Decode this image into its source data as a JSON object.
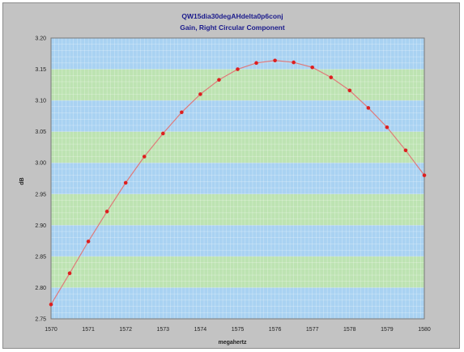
{
  "chart_data": {
    "type": "line",
    "title": "QW15dia30degAHdelta0p6conj",
    "subtitle": "Gain, Right Circular Component",
    "xlabel": "megahertz",
    "ylabel": "dB",
    "xlim": [
      1570,
      1580
    ],
    "ylim": [
      2.75,
      3.2
    ],
    "x_ticks": [
      "1570",
      "1571",
      "1572",
      "1573",
      "1574",
      "1575",
      "1576",
      "1577",
      "1578",
      "1579",
      "1580"
    ],
    "y_ticks": [
      "2.75",
      "2.80",
      "2.85",
      "2.90",
      "2.95",
      "3.00",
      "3.05",
      "3.10",
      "3.15",
      "3.20"
    ],
    "band_colors": [
      "#a9d2f2",
      "#bde3b2"
    ],
    "grid": true,
    "line_color": "#e07a7a",
    "marker_color": "#dd1f1f",
    "series": [
      {
        "x": [
          1570,
          1570.5,
          1571,
          1571.5,
          1572,
          1572.5,
          1573,
          1573.5,
          1574,
          1574.5,
          1575,
          1575.5,
          1576,
          1576.5,
          1577,
          1577.5,
          1578,
          1578.5,
          1579,
          1579.5,
          1580
        ],
        "values": [
          2.773,
          2.823,
          2.874,
          2.922,
          2.968,
          3.01,
          3.047,
          3.081,
          3.11,
          3.133,
          3.15,
          3.16,
          3.164,
          3.161,
          3.153,
          3.137,
          3.116,
          3.088,
          3.057,
          3.02,
          2.98
        ]
      }
    ]
  }
}
